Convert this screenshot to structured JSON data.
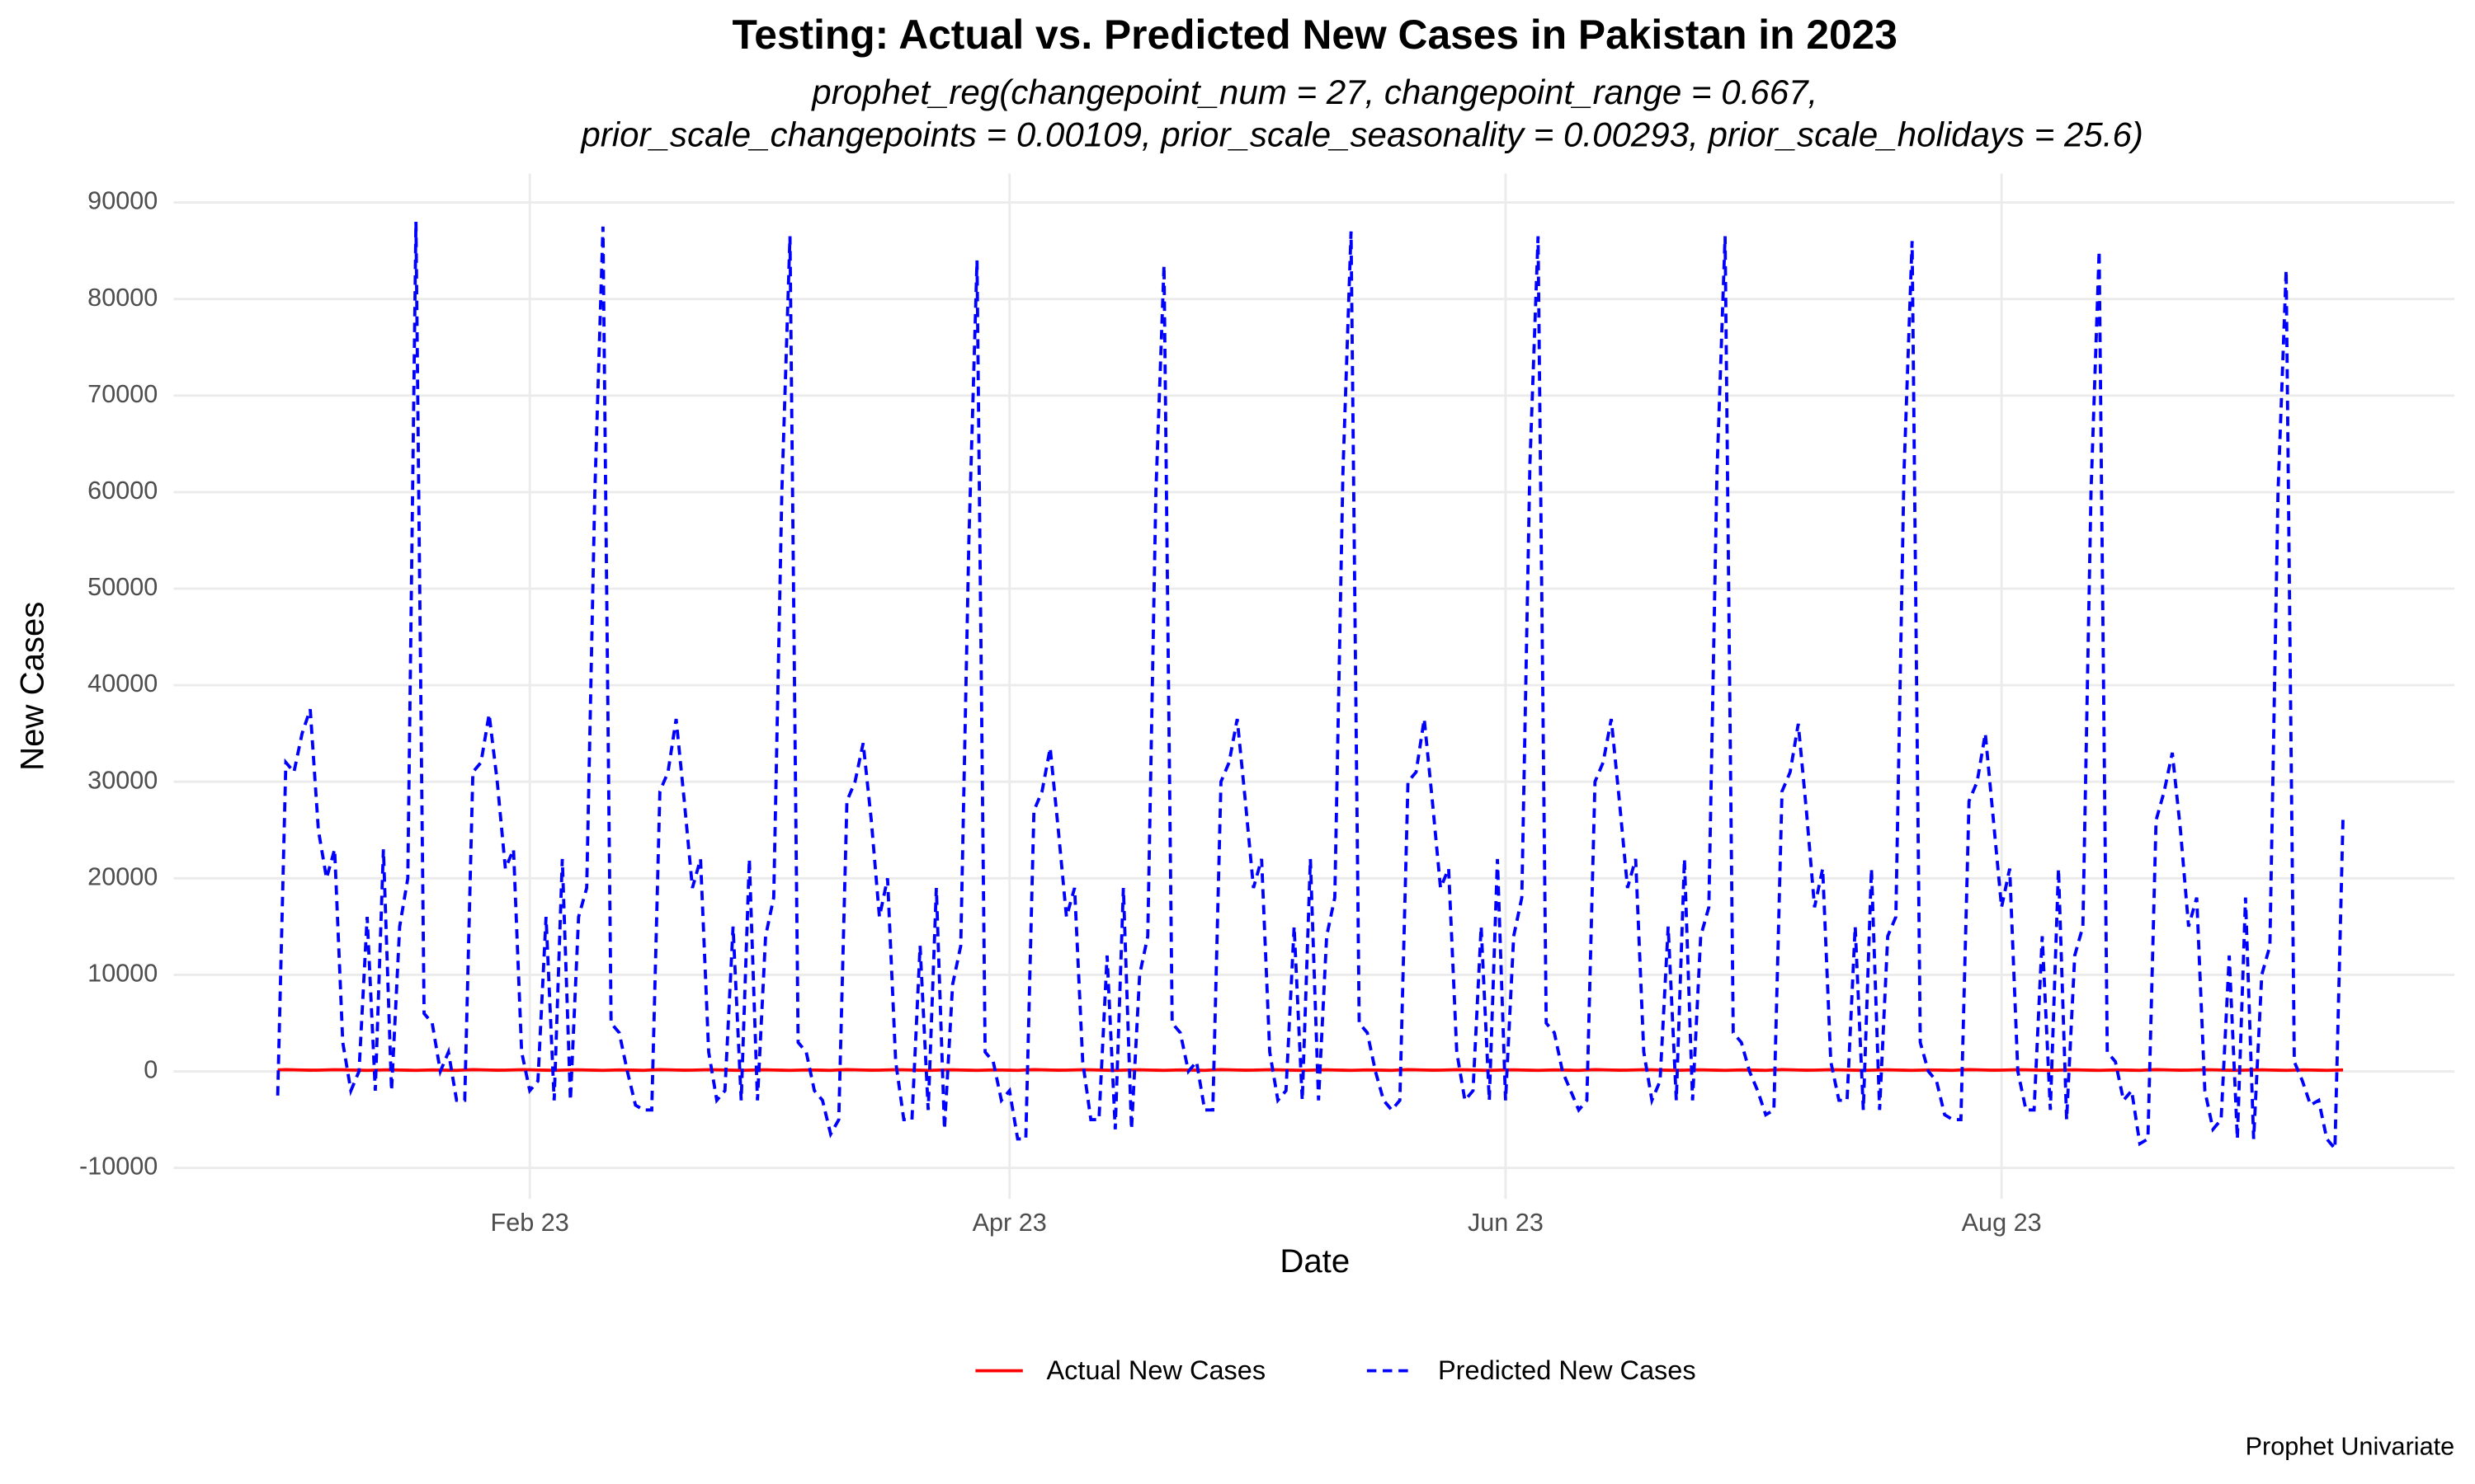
{
  "chart_data": {
    "type": "line",
    "title": "Testing: Actual vs. Predicted New Cases in Pakistan in 2023",
    "subtitle": [
      "prophet_reg(changepoint_num = 27, changepoint_range = 0.667,",
      "prior_scale_changepoints = 0.00109, prior_scale_seasonality = 0.00293, prior_scale_holidays = 25.6)"
    ],
    "x_label": "Date",
    "y_label": "New Cases",
    "caption": "Prophet Univariate",
    "xlim": [
      -11.8,
      268.7
    ],
    "ylim": [
      -13200,
      93000
    ],
    "xticks": [
      {
        "value": 32,
        "label": "Feb 23"
      },
      {
        "value": 91,
        "label": "Apr 23"
      },
      {
        "value": 152,
        "label": "Jun 23"
      },
      {
        "value": 213,
        "label": "Aug 23"
      }
    ],
    "yticks": [
      -10000,
      0,
      10000,
      20000,
      30000,
      40000,
      50000,
      60000,
      70000,
      80000,
      90000
    ],
    "grid": true,
    "legend": "bottom",
    "x": [
      1,
      2,
      3,
      4,
      5,
      6,
      7,
      8,
      9,
      10,
      11,
      12,
      13,
      14,
      15,
      16,
      17,
      18,
      19,
      20,
      21,
      22,
      23,
      24,
      25,
      26,
      27,
      28,
      29,
      30,
      31,
      32,
      33,
      34,
      35,
      36,
      37,
      38,
      39,
      40,
      41,
      42,
      43,
      44,
      45,
      46,
      47,
      48,
      49,
      50,
      51,
      52,
      53,
      54,
      55,
      56,
      57,
      58,
      59,
      60,
      61,
      62,
      63,
      64,
      65,
      66,
      67,
      68,
      69,
      70,
      71,
      72,
      73,
      74,
      75,
      76,
      77,
      78,
      79,
      80,
      81,
      82,
      83,
      84,
      85,
      86,
      87,
      88,
      89,
      90,
      91,
      92,
      93,
      94,
      95,
      96,
      97,
      98,
      99,
      100,
      101,
      102,
      103,
      104,
      105,
      106,
      107,
      108,
      109,
      110,
      111,
      112,
      113,
      114,
      115,
      116,
      117,
      118,
      119,
      120,
      121,
      122,
      123,
      124,
      125,
      126,
      127,
      128,
      129,
      130,
      131,
      132,
      133,
      134,
      135,
      136,
      137,
      138,
      139,
      140,
      141,
      142,
      143,
      144,
      145,
      146,
      147,
      148,
      149,
      150,
      151,
      152,
      153,
      154,
      155,
      156,
      157,
      158,
      159,
      160,
      161,
      162,
      163,
      164,
      165,
      166,
      167,
      168,
      169,
      170,
      171,
      172,
      173,
      174,
      175,
      176,
      177,
      178,
      179,
      180,
      181,
      182,
      183,
      184,
      185,
      186,
      187,
      188,
      189,
      190,
      191,
      192,
      193,
      194,
      195,
      196,
      197,
      198,
      199,
      200,
      201,
      202,
      203,
      204,
      205,
      206,
      207,
      208,
      209,
      210,
      211,
      212,
      213,
      214,
      215,
      216,
      217,
      218,
      219,
      220,
      221,
      222,
      223,
      224,
      225,
      226,
      227,
      228,
      229,
      230,
      231,
      232,
      233,
      234,
      235,
      236,
      237,
      238,
      239,
      240,
      241,
      242,
      243,
      244,
      245,
      246,
      247,
      248,
      249,
      250,
      251,
      252,
      253,
      254,
      255
    ],
    "series": [
      {
        "name": "Actual New Cases",
        "color": "#ff0000",
        "dashed": false,
        "values": [
          150,
          180,
          160,
          140,
          120,
          130,
          150,
          170,
          160,
          140,
          120,
          110,
          130,
          150,
          160,
          140,
          120,
          110,
          130,
          150,
          140,
          120,
          110,
          150,
          180,
          160,
          140,
          120,
          130,
          150,
          170,
          160,
          140,
          120,
          110,
          130,
          150,
          160,
          140,
          120,
          110,
          130,
          150,
          140,
          120,
          110,
          150,
          180,
          160,
          140,
          120,
          130,
          150,
          170,
          160,
          140,
          120,
          110,
          130,
          150,
          160,
          140,
          120,
          110,
          130,
          150,
          140,
          120,
          110,
          150,
          180,
          160,
          140,
          120,
          130,
          150,
          170,
          160,
          140,
          120,
          110,
          130,
          150,
          160,
          140,
          120,
          110,
          130,
          150,
          140,
          120,
          110,
          150,
          180,
          160,
          140,
          120,
          130,
          150,
          170,
          160,
          140,
          120,
          110,
          130,
          150,
          160,
          140,
          120,
          110,
          130,
          150,
          140,
          120,
          110,
          150,
          180,
          160,
          140,
          120,
          130,
          150,
          170,
          160,
          140,
          120,
          110,
          130,
          150,
          160,
          140,
          120,
          110,
          130,
          150,
          140,
          120,
          110,
          150,
          180,
          160,
          140,
          120,
          130,
          150,
          170,
          160,
          140,
          120,
          110,
          130,
          150,
          160,
          140,
          120,
          110,
          130,
          150,
          140,
          120,
          110,
          150,
          180,
          160,
          140,
          120,
          130,
          150,
          170,
          160,
          140,
          120,
          110,
          130,
          150,
          160,
          140,
          120,
          110,
          130,
          150,
          140,
          120,
          110,
          150,
          180,
          160,
          140,
          120,
          130,
          150,
          170,
          160,
          140,
          120,
          110,
          130,
          150,
          160,
          140,
          120,
          110,
          130,
          150,
          140,
          120,
          110,
          150,
          180,
          160,
          140,
          120,
          130,
          150,
          170,
          160,
          140,
          120,
          110,
          130,
          150,
          160,
          140,
          120,
          110,
          130,
          150,
          140,
          120,
          110,
          150,
          180,
          160,
          140,
          120,
          130,
          150,
          170,
          160,
          140,
          120,
          110,
          130,
          150,
          160,
          140,
          120,
          110,
          130,
          150,
          140,
          120,
          110,
          130,
          150
        ]
      },
      {
        "name": "Predicted New Cases",
        "color": "#0000ff",
        "dashed": true,
        "values": [
          -2500,
          32000,
          31000,
          35000,
          37500,
          25000,
          20000,
          23000,
          3000,
          -2000,
          0,
          16000,
          -2000,
          23000,
          -2000,
          15000,
          20000,
          88000,
          6000,
          5000,
          0,
          2000,
          -3000,
          -3000,
          31000,
          32000,
          37000,
          30000,
          21000,
          23000,
          2000,
          -2000,
          -1000,
          16000,
          -3000,
          22000,
          -3000,
          16000,
          19000,
          60000,
          87500,
          5000,
          4000,
          0,
          -3500,
          -4000,
          -4000,
          29000,
          31000,
          36500,
          28000,
          19000,
          22000,
          2000,
          -3000,
          -2000,
          15000,
          -3000,
          22000,
          -3000,
          14000,
          18000,
          60000,
          86500,
          3000,
          2000,
          -2000,
          -3000,
          -6500,
          -5000,
          28000,
          30000,
          34000,
          26000,
          16000,
          20000,
          1000,
          -5000,
          -5000,
          13000,
          -4000,
          19000,
          -6000,
          9000,
          13000,
          55000,
          84000,
          2000,
          1000,
          -3000,
          -2000,
          -7000,
          -7000,
          27000,
          29000,
          33500,
          25000,
          16000,
          19000,
          1000,
          -5000,
          -5000,
          12000,
          -6000,
          19000,
          -6000,
          10000,
          14000,
          60000,
          83500,
          5000,
          4000,
          0,
          1000,
          -4000,
          -4000,
          30000,
          32000,
          36500,
          28000,
          19000,
          22000,
          2000,
          -3000,
          -2000,
          15000,
          -3000,
          22000,
          -3000,
          14000,
          18000,
          62000,
          87000,
          5000,
          4000,
          0,
          -3000,
          -4000,
          -3000,
          30000,
          31000,
          36500,
          28000,
          19000,
          21000,
          2000,
          -3000,
          -2000,
          15000,
          -3000,
          22000,
          -3000,
          14000,
          18000,
          63000,
          86500,
          5000,
          4000,
          0,
          -2000,
          -4000,
          -3000,
          30000,
          32000,
          36500,
          28000,
          19000,
          22000,
          2000,
          -3000,
          -1000,
          15000,
          -3000,
          22000,
          -3000,
          14000,
          17000,
          62000,
          86500,
          4000,
          3000,
          0,
          -2000,
          -4500,
          -4000,
          29000,
          31000,
          36000,
          27000,
          17000,
          21000,
          1000,
          -3000,
          -3000,
          15000,
          -4000,
          21000,
          -4000,
          14000,
          16000,
          62000,
          86000,
          3000,
          0,
          -1000,
          -4500,
          -5000,
          -5000,
          28000,
          30000,
          35000,
          26000,
          17000,
          21000,
          0,
          -4000,
          -4000,
          14000,
          -4000,
          21000,
          -5000,
          12000,
          15000,
          60000,
          85000,
          2000,
          1000,
          -3000,
          -2000,
          -7500,
          -7000,
          26000,
          29000,
          33000,
          25000,
          15000,
          18000,
          -2000,
          -6000,
          -5000,
          12000,
          -7000,
          18000,
          -7000,
          10000,
          13000,
          60000,
          83000,
          1000,
          -1000,
          -3500,
          -3000,
          -7000,
          -8000,
          26500
        ]
      }
    ]
  }
}
